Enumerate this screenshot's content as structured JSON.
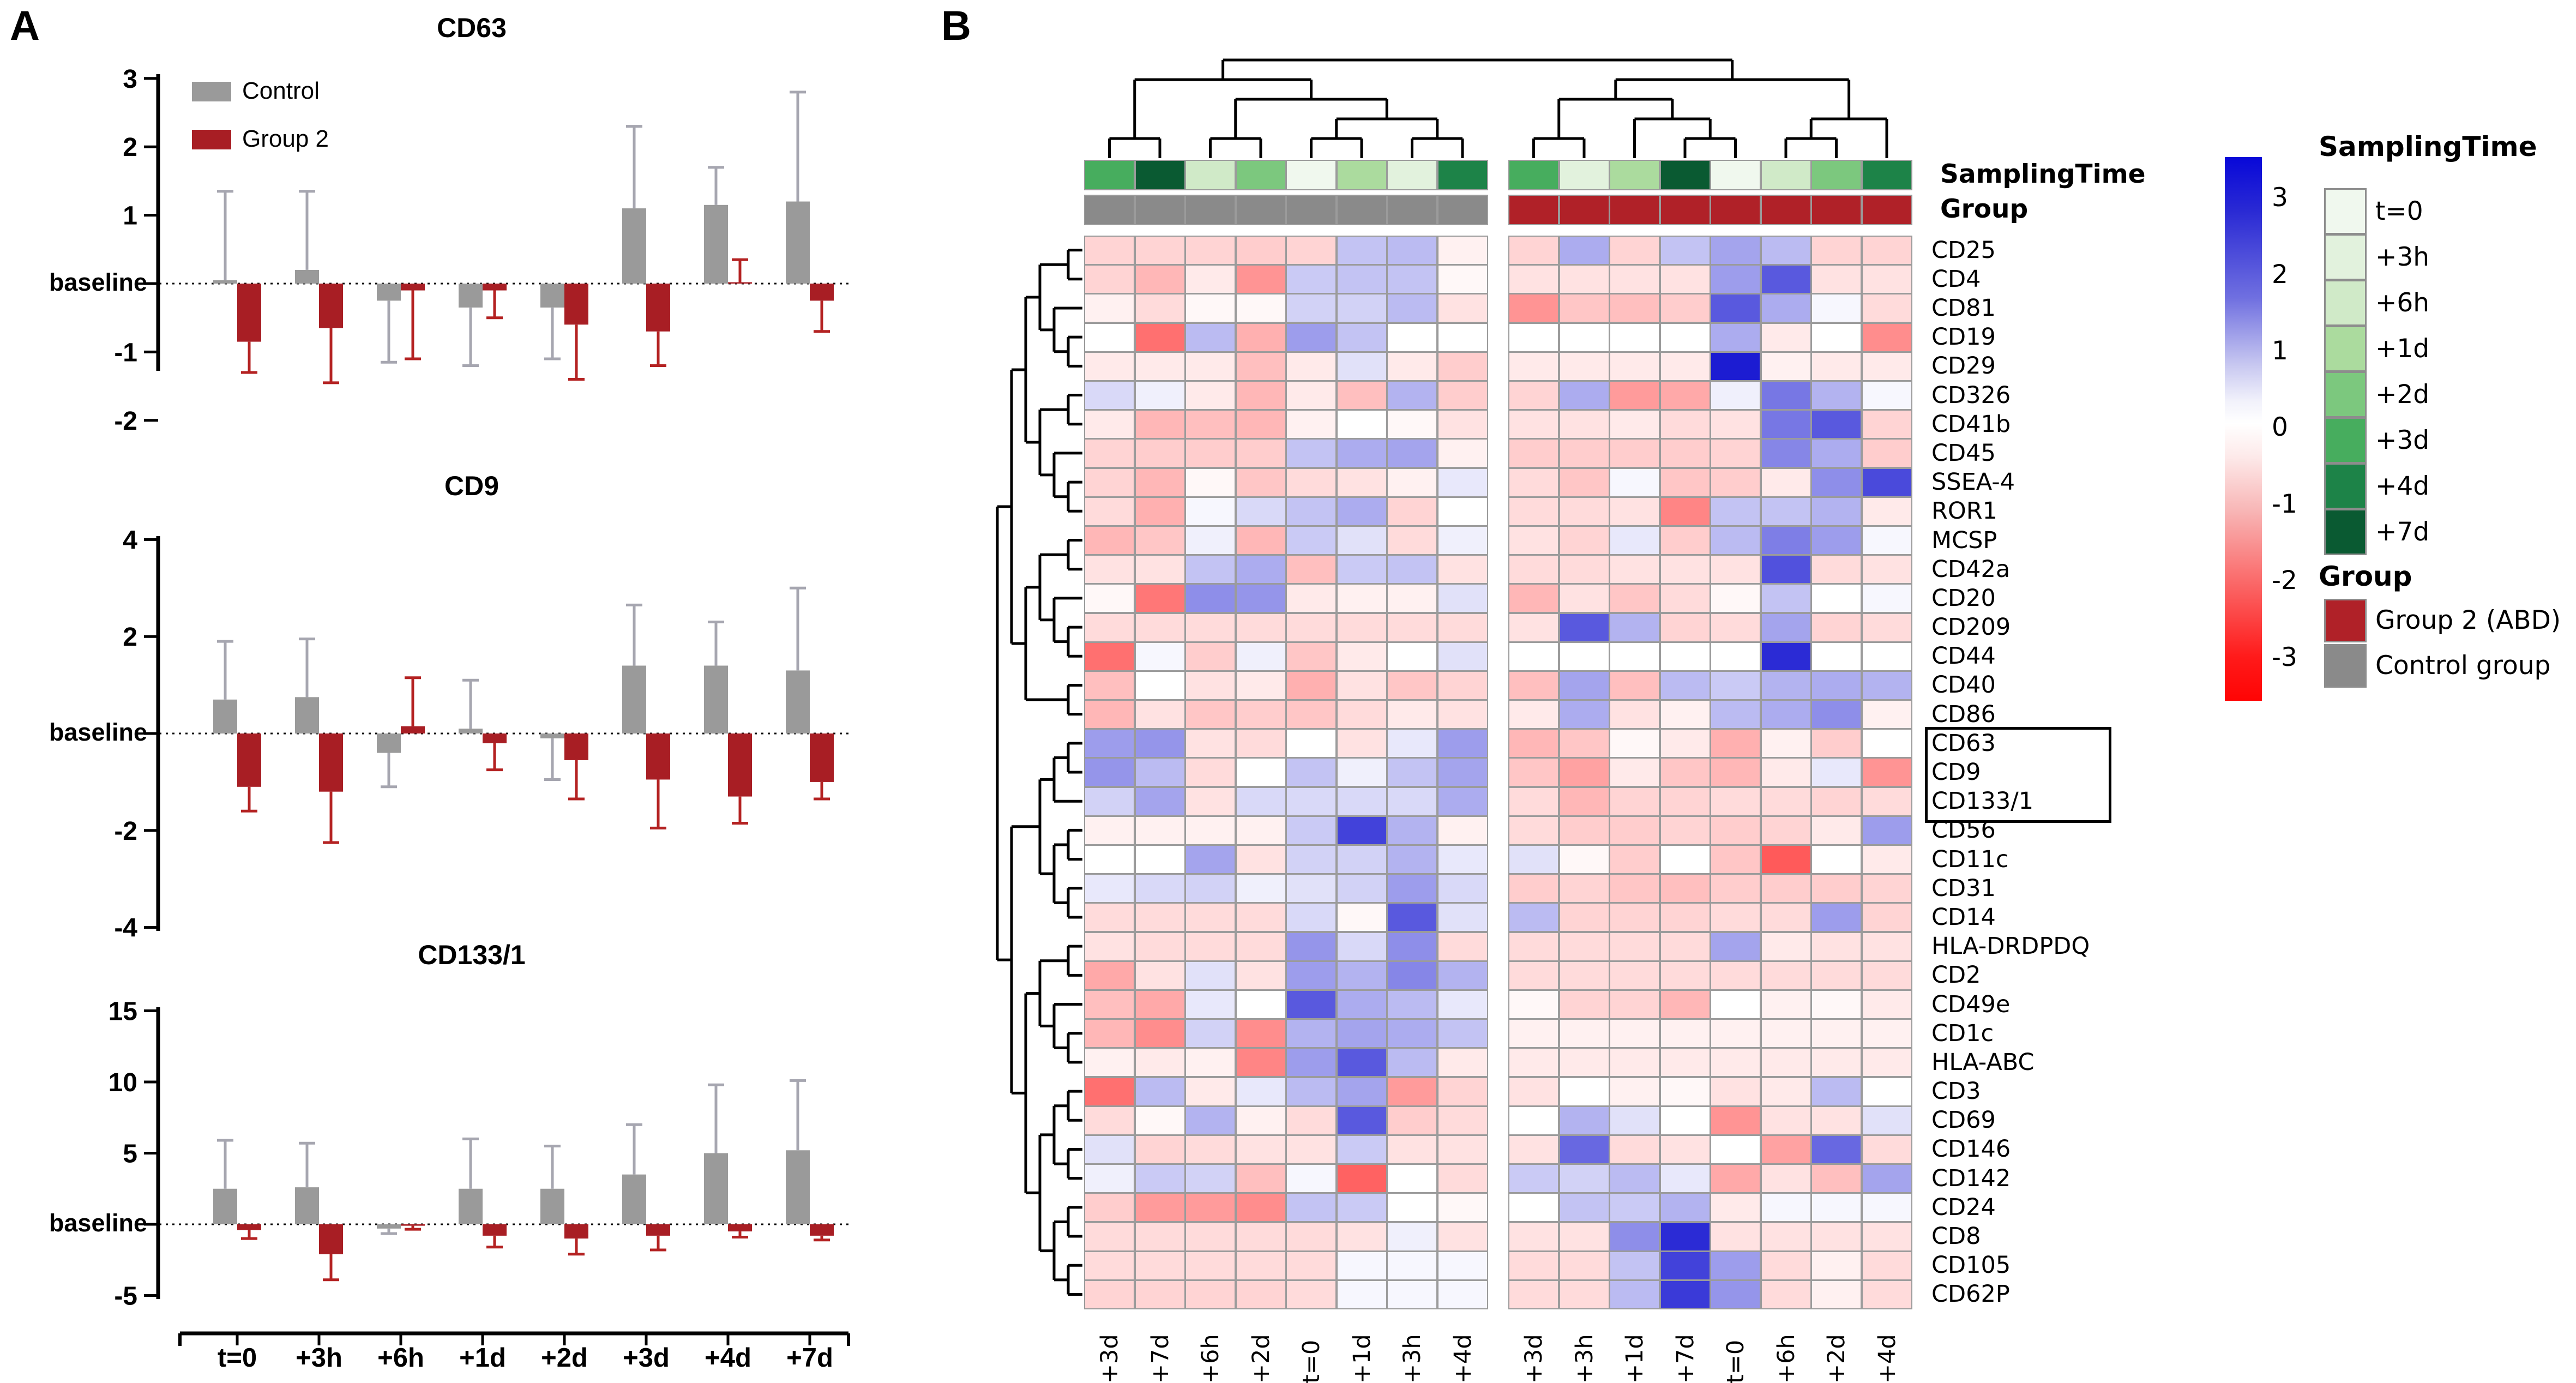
{
  "figure": {
    "panel_a_label": "A",
    "panel_b_label": "B"
  },
  "panel_a": {
    "legend": {
      "control": "Control",
      "group2": "Group 2"
    },
    "baseline_label": "baseline",
    "x_labels": [
      "t=0",
      "+3h",
      "+6h",
      "+1d",
      "+2d",
      "+3d",
      "+4d",
      "+7d"
    ],
    "colors": {
      "control": "#9a9a9a",
      "control_whisker": "#a6a6b0",
      "group2": "#a81e24",
      "group2_whisker": "#b42222"
    }
  },
  "panel_b": {
    "annotation_labels": {
      "sampling_time": "SamplingTime",
      "group": "Group"
    },
    "column_labels": [
      "+3d",
      "+7d",
      "+6h",
      "+2d",
      "t=0",
      "+1d",
      "+3h",
      "+4d",
      "+3d",
      "+3h",
      "+1d",
      "+7d",
      "t=0",
      "+6h",
      "+2d",
      "+4d"
    ],
    "column_group_split": 8,
    "highlight_box_rows": [
      "CD63",
      "CD9",
      "CD133/1"
    ],
    "colors": {
      "control_group": "#8a8a8a",
      "group2": "#b02128",
      "cell_border": "#9b9b9b",
      "pos_max": "#0d0dcf",
      "neg_max": "#ff1a1a"
    },
    "sampling_time_colors": {
      "t=0": "#f0f8ee",
      "+3h": "#e2f2dd",
      "+6h": "#d0eac8",
      "+1d": "#abdb9e",
      "+2d": "#7cc87e",
      "+3d": "#47ad5e",
      "+4d": "#1d8348",
      "+7d": "#0a5a32"
    }
  },
  "legend_panel": {
    "colorbar_ticks": [
      3,
      2,
      1,
      0,
      -1,
      -2,
      -3
    ],
    "sampling_title": "SamplingTime",
    "sampling_items": [
      "t=0",
      "+3h",
      "+6h",
      "+1d",
      "+2d",
      "+3d",
      "+4d",
      "+7d"
    ],
    "group_title": "Group",
    "group_items": [
      {
        "label": "Group 2 (ABD)",
        "color": "#b02128"
      },
      {
        "label": "Control group",
        "color": "#8a8a8a"
      }
    ]
  },
  "chart_data": [
    {
      "type": "bar",
      "title": "CD63",
      "categories": [
        "t=0",
        "+3h",
        "+6h",
        "+1d",
        "+2d",
        "+3d",
        "+4d",
        "+7d"
      ],
      "ylim": [
        -2,
        3
      ],
      "yticks": [
        3,
        2,
        1,
        -1,
        -2
      ],
      "baseline": 0,
      "grid": false,
      "series": [
        {
          "name": "Control",
          "values": [
            0.05,
            0.2,
            -0.25,
            -0.35,
            -0.35,
            1.1,
            1.15,
            1.2
          ],
          "errors": [
            1.3,
            1.15,
            0.9,
            0.85,
            0.75,
            1.2,
            0.55,
            1.6
          ]
        },
        {
          "name": "Group 2",
          "values": [
            -0.85,
            -0.65,
            -0.1,
            -0.1,
            -0.6,
            -0.7,
            0.02,
            -0.25
          ],
          "errors": [
            0.45,
            0.8,
            1.0,
            0.4,
            0.8,
            0.5,
            0.33,
            0.45
          ]
        }
      ]
    },
    {
      "type": "bar",
      "title": "CD9",
      "categories": [
        "t=0",
        "+3h",
        "+6h",
        "+1d",
        "+2d",
        "+3d",
        "+4d",
        "+7d"
      ],
      "ylim": [
        -4,
        4
      ],
      "yticks": [
        4,
        2,
        -2,
        -4
      ],
      "baseline": 0,
      "grid": false,
      "series": [
        {
          "name": "Control",
          "values": [
            0.7,
            0.75,
            -0.4,
            0.1,
            -0.1,
            1.4,
            1.4,
            1.3
          ],
          "errors": [
            1.2,
            1.2,
            0.7,
            1.0,
            0.85,
            1.25,
            0.9,
            1.7
          ]
        },
        {
          "name": "Group 2",
          "values": [
            -1.1,
            -1.2,
            0.15,
            -0.2,
            -0.55,
            -0.95,
            -1.3,
            -1.0
          ],
          "errors": [
            0.5,
            1.05,
            1.0,
            0.55,
            0.8,
            1.0,
            0.55,
            0.35
          ]
        }
      ]
    },
    {
      "type": "bar",
      "title": "CD133/1",
      "categories": [
        "t=0",
        "+3h",
        "+6h",
        "+1d",
        "+2d",
        "+3d",
        "+4d",
        "+7d"
      ],
      "ylim": [
        -5,
        15
      ],
      "yticks": [
        15,
        10,
        5,
        -5
      ],
      "baseline": 0,
      "grid": false,
      "series": [
        {
          "name": "Control",
          "values": [
            2.5,
            2.6,
            -0.3,
            2.5,
            2.5,
            3.5,
            5.0,
            5.2
          ],
          "errors": [
            3.4,
            3.1,
            0.35,
            3.5,
            3.0,
            3.5,
            4.8,
            4.9
          ]
        },
        {
          "name": "Group 2",
          "values": [
            -0.4,
            -2.1,
            -0.1,
            -0.8,
            -1.0,
            -0.8,
            -0.5,
            -0.8
          ],
          "errors": [
            0.6,
            1.8,
            0.25,
            0.8,
            1.1,
            1.0,
            0.4,
            0.3
          ]
        }
      ]
    },
    {
      "type": "heatmap",
      "value_range": [
        -3,
        3
      ],
      "columns": [
        "+3d",
        "+7d",
        "+6h",
        "+2d",
        "t=0",
        "+1d",
        "+3h",
        "+4d",
        "+3d",
        "+3h",
        "+1d",
        "+7d",
        "t=0",
        "+6h",
        "+2d",
        "+4d"
      ],
      "column_groups": [
        {
          "name": "Control group",
          "cols": [
            0,
            7
          ]
        },
        {
          "name": "Group 2 (ABD)",
          "cols": [
            8,
            15
          ]
        }
      ],
      "rows": [
        {
          "label": "CD25",
          "values": [
            -0.6,
            -0.6,
            -0.6,
            -0.7,
            -0.6,
            0.8,
            0.9,
            -0.2,
            -0.6,
            1.1,
            -0.6,
            0.8,
            1.2,
            0.9,
            -0.6,
            -0.6
          ]
        },
        {
          "label": "CD4",
          "values": [
            -0.6,
            -1.0,
            -0.3,
            -1.5,
            0.7,
            0.8,
            0.8,
            -0.1,
            -0.4,
            -0.4,
            -0.4,
            -0.4,
            1.3,
            2.2,
            -0.4,
            -0.4
          ]
        },
        {
          "label": "CD81",
          "values": [
            -0.2,
            -0.5,
            -0.1,
            -0.1,
            0.6,
            0.6,
            0.9,
            -0.4,
            -1.5,
            -0.8,
            -0.9,
            -0.7,
            2.2,
            1.1,
            0.1,
            -0.5
          ]
        },
        {
          "label": "CD19",
          "values": [
            0.0,
            -2.0,
            0.9,
            -1.1,
            1.3,
            0.8,
            0.0,
            0.0,
            0.0,
            0.0,
            0.0,
            0.0,
            1.1,
            -0.3,
            0.0,
            -1.6
          ]
        },
        {
          "label": "CD29",
          "values": [
            -0.3,
            -0.3,
            -0.3,
            -0.9,
            -0.3,
            0.4,
            -0.3,
            -0.7,
            -0.3,
            -0.3,
            -0.3,
            -0.3,
            3.0,
            -0.2,
            -0.3,
            -0.3
          ]
        },
        {
          "label": "CD326",
          "values": [
            0.5,
            0.2,
            -0.3,
            -1.0,
            -0.3,
            -0.9,
            1.0,
            -0.7,
            -0.6,
            1.1,
            -1.4,
            -1.2,
            0.2,
            1.8,
            1.0,
            0.1
          ]
        },
        {
          "label": "CD41b",
          "values": [
            -0.3,
            -1.0,
            -0.9,
            -1.0,
            -0.2,
            0.0,
            -0.1,
            -0.4,
            -0.4,
            -0.4,
            -0.3,
            -0.5,
            -0.4,
            1.8,
            2.2,
            -0.6
          ]
        },
        {
          "label": "CD45",
          "values": [
            -0.6,
            -0.7,
            -0.7,
            -0.7,
            0.8,
            1.1,
            1.2,
            -0.2,
            -0.7,
            -0.7,
            -0.7,
            -0.7,
            -0.6,
            1.6,
            1.1,
            -0.7
          ]
        },
        {
          "label": "SSEA-4",
          "values": [
            -0.6,
            -1.0,
            -0.1,
            -0.8,
            -0.5,
            -0.4,
            -0.2,
            0.3,
            -0.5,
            -0.8,
            0.1,
            -0.8,
            -0.7,
            -0.3,
            1.5,
            2.4
          ]
        },
        {
          "label": "ROR1",
          "values": [
            -0.5,
            -1.1,
            0.1,
            0.5,
            0.8,
            1.1,
            -0.6,
            0.0,
            -0.5,
            -0.5,
            -0.4,
            -1.7,
            0.8,
            0.8,
            1.0,
            -0.3
          ]
        },
        {
          "label": "MCSP",
          "values": [
            -1.0,
            -0.8,
            0.2,
            -1.0,
            0.7,
            0.4,
            -0.5,
            0.2,
            -0.4,
            -0.6,
            0.3,
            -0.7,
            0.9,
            1.7,
            1.3,
            0.1
          ]
        },
        {
          "label": "CD42a",
          "values": [
            -0.4,
            -0.4,
            0.8,
            1.1,
            -0.9,
            0.7,
            0.8,
            -0.4,
            -0.5,
            -0.5,
            -0.4,
            -0.4,
            -0.4,
            2.3,
            -0.5,
            -0.4
          ]
        },
        {
          "label": "CD20",
          "values": [
            -0.1,
            -1.9,
            1.5,
            1.4,
            -0.3,
            -0.2,
            -0.2,
            0.4,
            -1.0,
            -0.4,
            -0.8,
            -0.5,
            -0.1,
            0.8,
            0.0,
            0.1
          ]
        },
        {
          "label": "CD209",
          "values": [
            -0.5,
            -0.5,
            -0.5,
            -0.5,
            -0.5,
            -0.5,
            -0.5,
            -0.5,
            -0.4,
            2.2,
            1.0,
            -0.6,
            -0.5,
            1.2,
            -0.6,
            -0.5
          ]
        },
        {
          "label": "CD44",
          "values": [
            -2.0,
            0.1,
            -0.7,
            0.2,
            -0.8,
            -0.3,
            0.0,
            0.4,
            0.0,
            0.0,
            0.0,
            0.0,
            0.0,
            2.8,
            0.0,
            0.0
          ]
        },
        {
          "label": "CD40",
          "values": [
            -0.9,
            0.0,
            -0.4,
            -0.3,
            -1.1,
            -0.4,
            -0.8,
            -0.6,
            -0.9,
            1.2,
            -0.9,
            0.9,
            0.7,
            1.0,
            1.1,
            1.0
          ]
        },
        {
          "label": "CD86",
          "values": [
            -1.0,
            -0.4,
            -0.8,
            -0.7,
            -0.8,
            -0.5,
            -0.3,
            -0.4,
            -0.3,
            1.1,
            -0.4,
            -0.2,
            0.9,
            1.1,
            1.5,
            -0.2
          ]
        },
        {
          "label": "CD63",
          "values": [
            1.3,
            1.4,
            -0.4,
            -0.5,
            0.0,
            -0.4,
            0.3,
            1.3,
            -1.0,
            -0.8,
            -0.1,
            -0.3,
            -1.1,
            -0.2,
            -0.7,
            0.0
          ]
        },
        {
          "label": "CD9",
          "values": [
            1.4,
            0.9,
            -0.5,
            0.0,
            0.8,
            0.2,
            0.8,
            1.2,
            -0.8,
            -1.3,
            -0.3,
            -0.8,
            -1.0,
            -0.3,
            0.3,
            -1.5
          ]
        },
        {
          "label": "CD133/1",
          "values": [
            0.6,
            1.2,
            -0.4,
            0.5,
            0.5,
            0.5,
            0.5,
            1.1,
            -0.5,
            -1.0,
            -0.6,
            -0.6,
            -0.5,
            -0.5,
            -0.6,
            -0.5
          ]
        },
        {
          "label": "CD56",
          "values": [
            -0.2,
            -0.2,
            -0.2,
            -0.2,
            0.7,
            2.5,
            1.0,
            -0.2,
            -0.5,
            -0.7,
            -0.7,
            -0.6,
            -0.7,
            -0.6,
            -0.3,
            1.3
          ]
        },
        {
          "label": "CD11c",
          "values": [
            0.0,
            0.0,
            1.2,
            -0.4,
            0.6,
            0.6,
            1.0,
            0.3,
            0.4,
            -0.1,
            -0.7,
            0.0,
            -0.8,
            -2.3,
            0.0,
            -0.3
          ]
        },
        {
          "label": "CD31",
          "values": [
            0.3,
            0.5,
            0.6,
            0.2,
            0.4,
            0.6,
            1.3,
            0.5,
            -0.7,
            -0.6,
            -0.8,
            -0.9,
            -0.7,
            -0.7,
            -0.7,
            -0.6
          ]
        },
        {
          "label": "CD14",
          "values": [
            -0.5,
            -0.5,
            -0.5,
            -0.5,
            0.5,
            -0.1,
            2.2,
            0.4,
            0.9,
            -0.6,
            -0.6,
            -0.6,
            -0.5,
            -0.5,
            1.3,
            -0.6
          ]
        },
        {
          "label": "HLA-DRDPDQ",
          "values": [
            -0.4,
            -0.5,
            -0.5,
            -0.5,
            1.4,
            0.5,
            1.5,
            -0.5,
            -0.5,
            -0.5,
            -0.5,
            -0.5,
            1.2,
            -0.3,
            -0.4,
            -0.4
          ]
        },
        {
          "label": "CD2",
          "values": [
            -1.2,
            -0.4,
            0.4,
            -0.4,
            1.3,
            1.0,
            1.6,
            1.0,
            -0.5,
            -0.5,
            -0.5,
            -0.5,
            -0.5,
            -0.5,
            -0.5,
            -0.5
          ]
        },
        {
          "label": "CD49e",
          "values": [
            -0.9,
            -1.2,
            0.3,
            0.0,
            2.2,
            1.1,
            0.9,
            0.3,
            -0.1,
            -0.6,
            -0.6,
            -1.0,
            0.0,
            -0.2,
            -0.1,
            -0.3
          ]
        },
        {
          "label": "CD1c",
          "values": [
            -1.0,
            -1.6,
            0.6,
            -1.6,
            1.0,
            1.2,
            1.1,
            0.8,
            -0.2,
            -0.2,
            -0.2,
            -0.2,
            -0.2,
            -0.2,
            -0.2,
            -0.2
          ]
        },
        {
          "label": "HLA-ABC",
          "values": [
            -0.2,
            -0.3,
            -0.2,
            -1.7,
            1.3,
            2.2,
            0.9,
            -0.3,
            -0.3,
            -0.3,
            -0.3,
            -0.3,
            -0.3,
            -0.3,
            -0.3,
            -0.3
          ]
        },
        {
          "label": "CD3",
          "values": [
            -2.0,
            0.9,
            -0.3,
            0.3,
            0.9,
            1.2,
            -1.4,
            -0.6,
            -0.4,
            0.0,
            -0.2,
            -0.1,
            -0.4,
            -0.3,
            0.9,
            0.0
          ]
        },
        {
          "label": "CD69",
          "values": [
            -0.5,
            -0.1,
            1.0,
            -0.2,
            -0.5,
            2.2,
            -0.7,
            -0.5,
            0.0,
            1.0,
            0.4,
            0.0,
            -1.5,
            -0.4,
            -0.4,
            0.4
          ]
        },
        {
          "label": "CD146",
          "values": [
            0.4,
            -0.6,
            -0.5,
            -0.4,
            -0.4,
            0.7,
            -0.4,
            -0.4,
            -0.4,
            2.0,
            -0.5,
            -0.4,
            0.0,
            -1.3,
            2.0,
            -0.5
          ]
        },
        {
          "label": "CD142",
          "values": [
            0.2,
            0.7,
            0.6,
            -0.9,
            0.1,
            -2.2,
            0.0,
            -0.5,
            0.7,
            0.6,
            0.9,
            0.3,
            -1.2,
            -0.4,
            -0.9,
            1.2
          ]
        },
        {
          "label": "CD24",
          "values": [
            -0.7,
            -1.4,
            -1.4,
            -1.6,
            0.8,
            0.7,
            0.0,
            -0.1,
            0.0,
            0.8,
            0.7,
            1.0,
            -0.3,
            0.1,
            0.1,
            0.1
          ]
        },
        {
          "label": "CD8",
          "values": [
            -0.5,
            -0.5,
            -0.5,
            -0.5,
            -0.5,
            -0.4,
            0.2,
            -0.4,
            -0.4,
            -0.4,
            1.5,
            2.8,
            -0.4,
            -0.4,
            -0.4,
            -0.4
          ]
        },
        {
          "label": "CD105",
          "values": [
            -0.5,
            -0.5,
            -0.5,
            -0.5,
            -0.5,
            0.1,
            0.1,
            0.1,
            -0.5,
            -0.5,
            0.8,
            2.5,
            1.3,
            -0.5,
            -0.2,
            -0.5
          ]
        },
        {
          "label": "CD62P",
          "values": [
            -0.6,
            -0.6,
            -0.6,
            -0.6,
            -0.5,
            0.1,
            0.1,
            0.1,
            -0.5,
            -0.5,
            0.9,
            2.6,
            1.4,
            -0.5,
            -0.2,
            -0.5
          ]
        }
      ]
    }
  ]
}
